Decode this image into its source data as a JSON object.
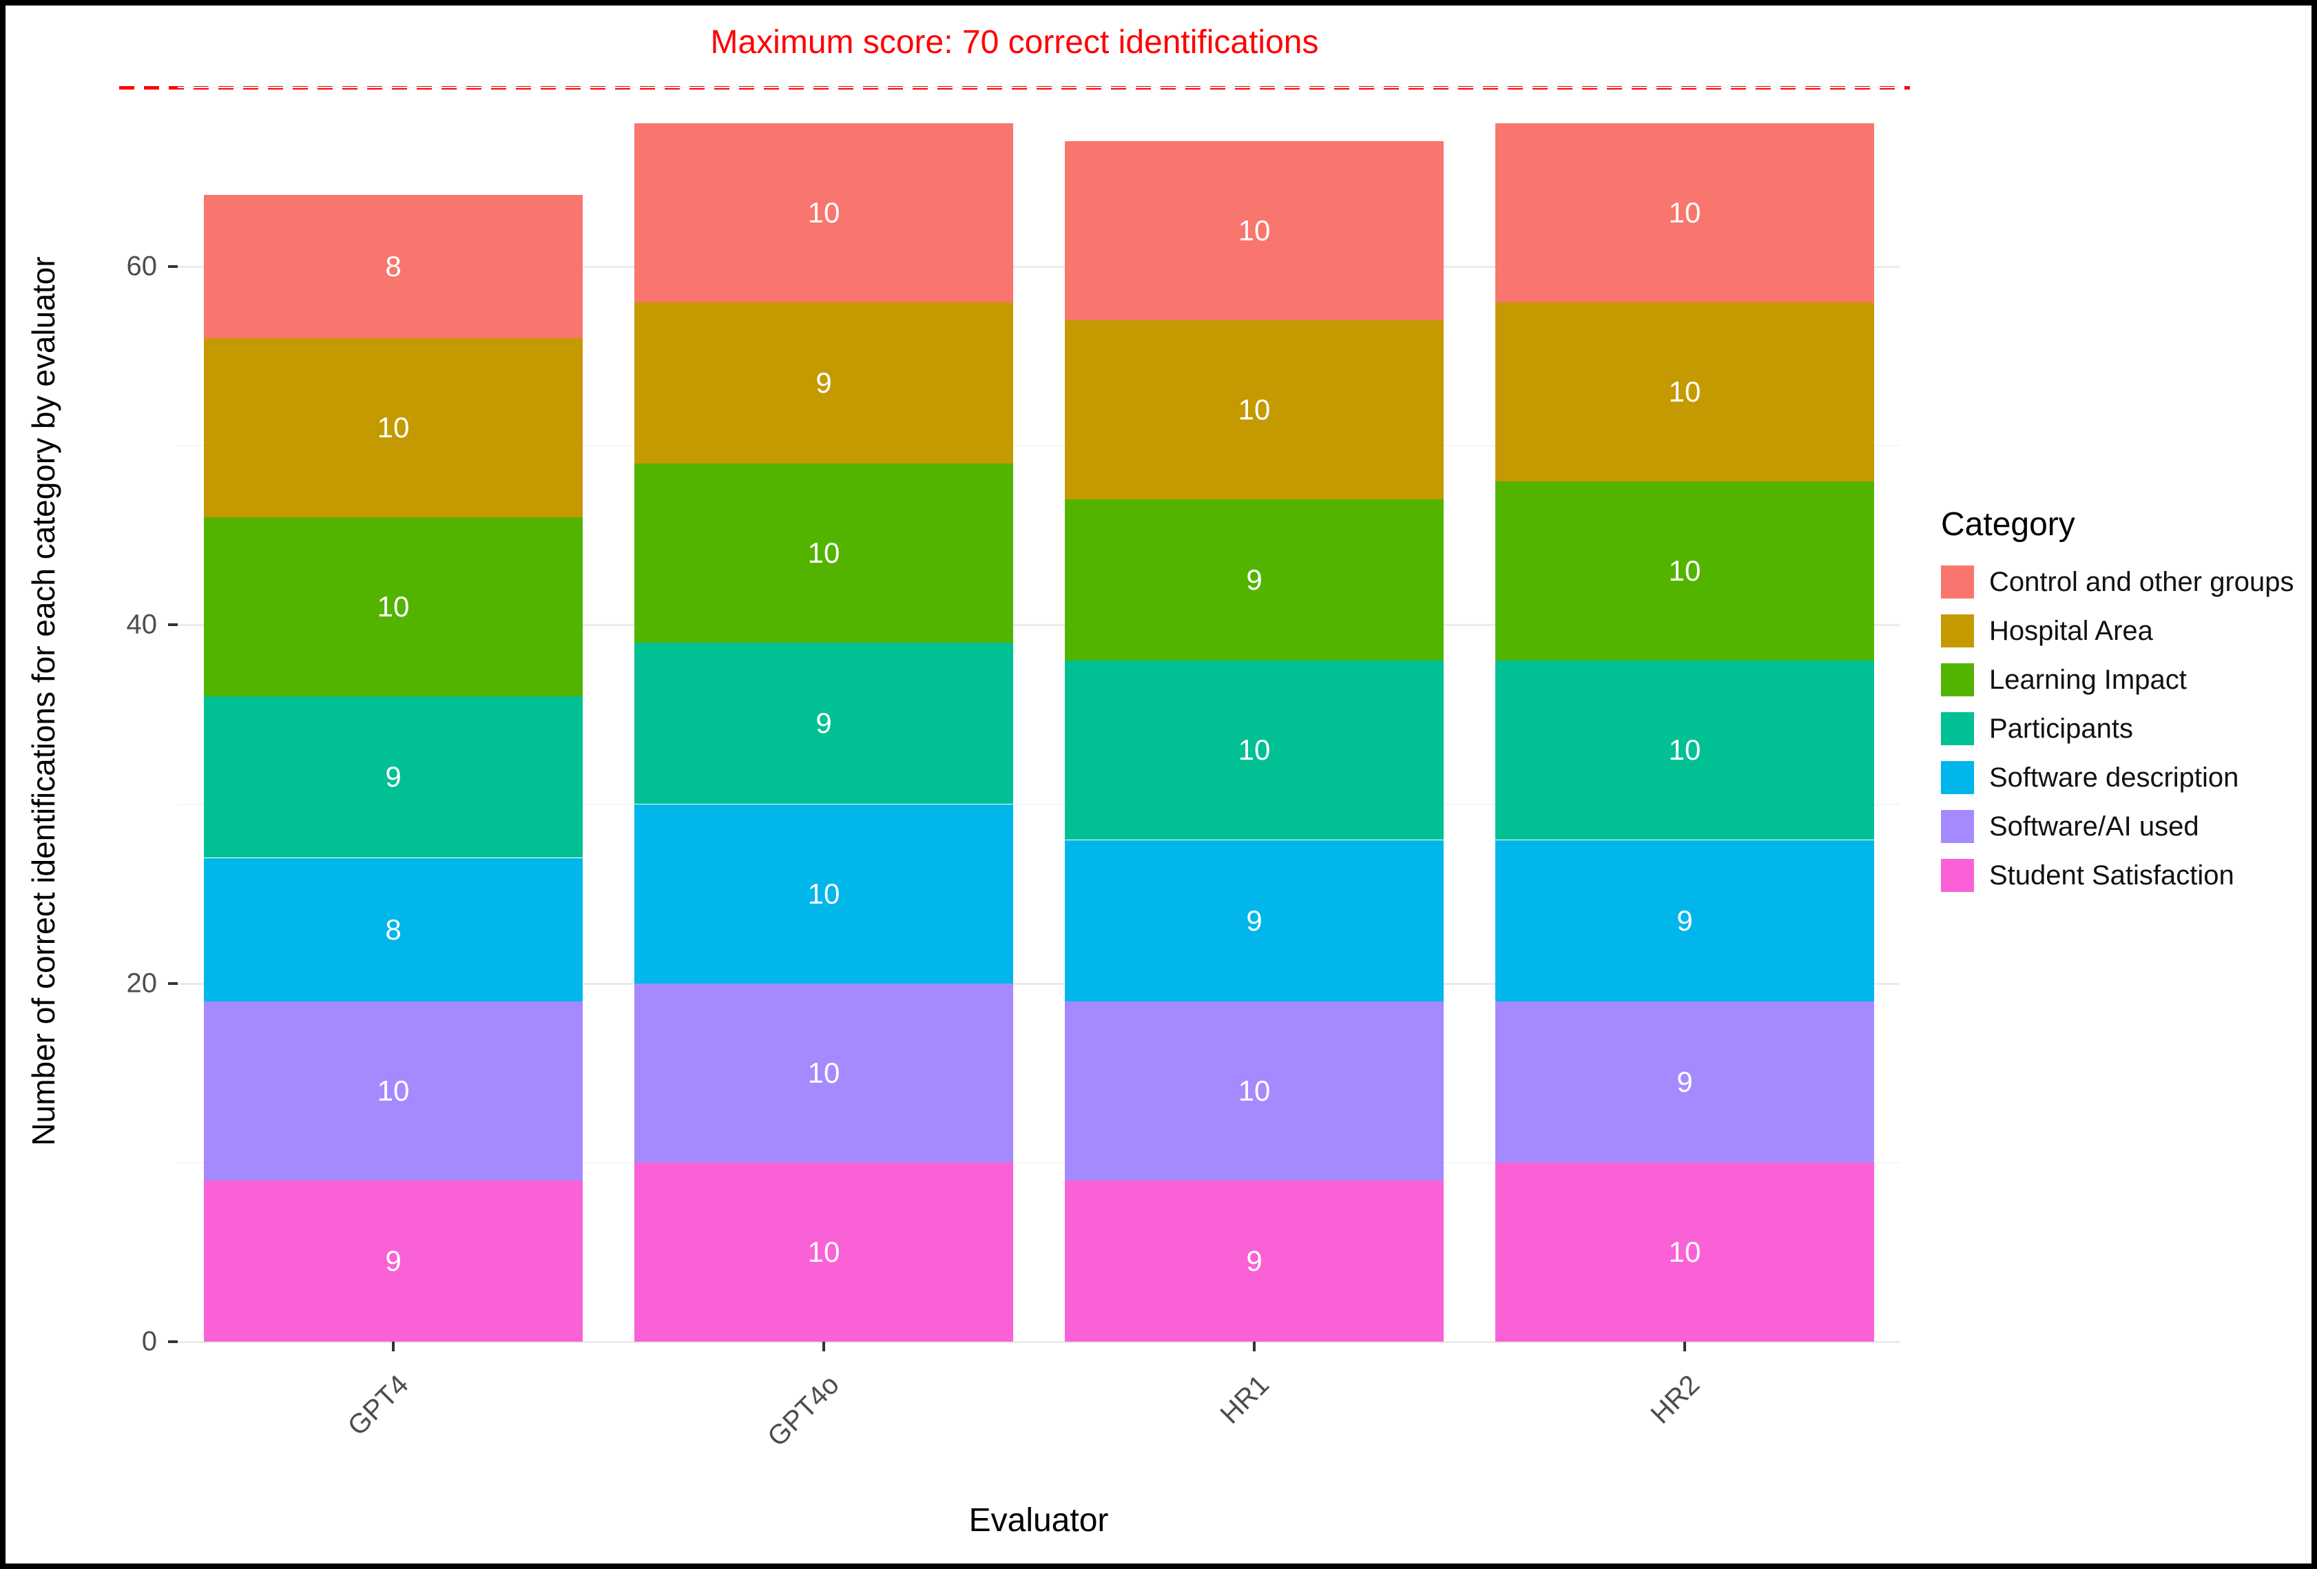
{
  "chart_data": {
    "type": "bar",
    "stacked": true,
    "categories": [
      "GPT4",
      "GPT4o",
      "HR1",
      "HR2"
    ],
    "series": [
      {
        "name": "Student Satisfaction",
        "color": "#FB61D7",
        "values": [
          9,
          10,
          9,
          10
        ]
      },
      {
        "name": "Software/AI used",
        "color": "#A58AFF",
        "values": [
          10,
          10,
          10,
          9
        ]
      },
      {
        "name": "Software description",
        "color": "#00B6EB",
        "values": [
          8,
          10,
          9,
          9
        ]
      },
      {
        "name": "Participants",
        "color": "#00C094",
        "values": [
          9,
          9,
          10,
          10
        ]
      },
      {
        "name": "Learning Impact",
        "color": "#53B400",
        "values": [
          10,
          10,
          9,
          10
        ]
      },
      {
        "name": "Hospital Area",
        "color": "#C49A00",
        "values": [
          10,
          9,
          10,
          10
        ]
      },
      {
        "name": "Control and other groups",
        "color": "#F8766D",
        "values": [
          8,
          10,
          10,
          10
        ]
      }
    ],
    "annotation": {
      "text": "Maximum score: 70 correct identifications",
      "y": 70,
      "color": "#FF0000"
    },
    "xlabel": "Evaluator",
    "ylabel": "Number of correct identifications for each category by evaluator",
    "legend_title": "Category",
    "yticks": [
      0,
      20,
      40,
      60
    ],
    "yticks_minor": [
      10,
      30,
      50,
      70
    ],
    "ylim": [
      0,
      71.5
    ],
    "grid": true,
    "legend_position": "right"
  }
}
